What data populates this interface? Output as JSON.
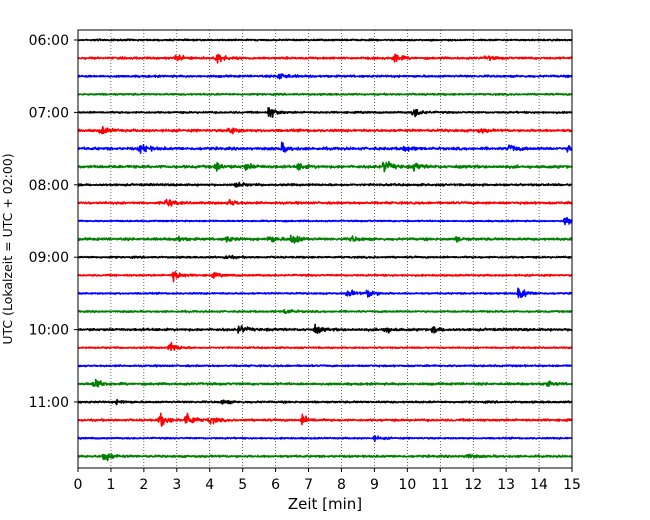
{
  "chart_data": {
    "type": "line",
    "subtype": "seismogram-helicorder",
    "title": "",
    "xlabel": "Zeit  [min]",
    "ylabel": "UTC (Lokalzeit = UTC + 02:00)",
    "xlim": [
      0,
      15
    ],
    "x_ticks": [
      0,
      1,
      2,
      3,
      4,
      5,
      6,
      7,
      8,
      9,
      10,
      11,
      12,
      13,
      14,
      15
    ],
    "x_tick_labels": [
      "0",
      "1",
      "2",
      "3",
      "4",
      "5",
      "6",
      "7",
      "8",
      "9",
      "10",
      "11",
      "12",
      "13",
      "14",
      "15"
    ],
    "y_tick_labels": [
      "06:00",
      "07:00",
      "08:00",
      "09:00",
      "10:00",
      "11:00"
    ],
    "y_ticks_at_trace_index": [
      0,
      4,
      8,
      12,
      16,
      20
    ],
    "grid": "vertical dotted at every minute",
    "trace_color_cycle": [
      "#000000",
      "#ff0000",
      "#0000ff",
      "#008000"
    ],
    "traces_per_hour": 4,
    "minutes_per_trace": 15,
    "traces": [
      {
        "start": "06:00",
        "noise": 0.9,
        "events": [
          {
            "t": 0.6,
            "amp": 1.2
          }
        ]
      },
      {
        "start": "06:15",
        "noise": 1.2,
        "events": [
          {
            "t": 3.0,
            "amp": 5
          },
          {
            "t": 4.2,
            "amp": 9
          },
          {
            "t": 9.6,
            "amp": 7
          },
          {
            "t": 12.4,
            "amp": 3
          }
        ]
      },
      {
        "start": "06:30",
        "noise": 1.2,
        "events": [
          {
            "t": 6.1,
            "amp": 6
          }
        ]
      },
      {
        "start": "06:45",
        "noise": 1.0,
        "events": []
      },
      {
        "start": "07:00",
        "noise": 1.0,
        "events": [
          {
            "t": 5.8,
            "amp": 9
          },
          {
            "t": 10.2,
            "amp": 7
          }
        ]
      },
      {
        "start": "07:15",
        "noise": 1.4,
        "events": [
          {
            "t": 0.7,
            "amp": 6
          },
          {
            "t": 4.6,
            "amp": 6
          },
          {
            "t": 12.2,
            "amp": 3
          }
        ]
      },
      {
        "start": "07:30",
        "noise": 1.5,
        "events": [
          {
            "t": 1.9,
            "amp": 8
          },
          {
            "t": 6.2,
            "amp": 6
          },
          {
            "t": 9.9,
            "amp": 4
          },
          {
            "t": 13.1,
            "amp": 6
          },
          {
            "t": 14.9,
            "amp": 5
          }
        ]
      },
      {
        "start": "07:45",
        "noise": 1.6,
        "events": [
          {
            "t": 4.2,
            "amp": 6
          },
          {
            "t": 5.1,
            "amp": 5
          },
          {
            "t": 6.7,
            "amp": 5
          },
          {
            "t": 9.3,
            "amp": 9
          },
          {
            "t": 10.2,
            "amp": 5
          }
        ]
      },
      {
        "start": "08:00",
        "noise": 1.2,
        "events": [
          {
            "t": 4.8,
            "amp": 4
          }
        ]
      },
      {
        "start": "08:15",
        "noise": 1.3,
        "events": [
          {
            "t": 2.7,
            "amp": 6
          },
          {
            "t": 4.6,
            "amp": 5
          }
        ]
      },
      {
        "start": "08:30",
        "noise": 0.8,
        "events": [
          {
            "t": 14.8,
            "amp": 7
          }
        ]
      },
      {
        "start": "08:45",
        "noise": 1.4,
        "events": [
          {
            "t": 3.0,
            "amp": 4
          },
          {
            "t": 4.5,
            "amp": 4
          },
          {
            "t": 5.8,
            "amp": 6
          },
          {
            "t": 6.5,
            "amp": 10
          },
          {
            "t": 8.3,
            "amp": 4
          },
          {
            "t": 11.5,
            "amp": 3
          }
        ]
      },
      {
        "start": "09:00",
        "noise": 1.0,
        "events": [
          {
            "t": 4.5,
            "amp": 3
          }
        ]
      },
      {
        "start": "09:15",
        "noise": 1.0,
        "events": [
          {
            "t": 2.9,
            "amp": 8
          },
          {
            "t": 4.1,
            "amp": 3
          }
        ]
      },
      {
        "start": "09:30",
        "noise": 0.9,
        "events": [
          {
            "t": 8.2,
            "amp": 6
          },
          {
            "t": 8.8,
            "amp": 7
          },
          {
            "t": 13.4,
            "amp": 10
          }
        ]
      },
      {
        "start": "09:45",
        "noise": 1.0,
        "events": [
          {
            "t": 6.3,
            "amp": 4
          }
        ]
      },
      {
        "start": "10:00",
        "noise": 1.4,
        "events": [
          {
            "t": 4.9,
            "amp": 6
          },
          {
            "t": 7.2,
            "amp": 5
          },
          {
            "t": 9.3,
            "amp": 5
          },
          {
            "t": 10.8,
            "amp": 4
          }
        ]
      },
      {
        "start": "10:15",
        "noise": 0.9,
        "events": [
          {
            "t": 2.8,
            "amp": 8
          }
        ]
      },
      {
        "start": "10:30",
        "noise": 1.0,
        "events": []
      },
      {
        "start": "10:45",
        "noise": 1.3,
        "events": [
          {
            "t": 0.5,
            "amp": 9
          },
          {
            "t": 14.2,
            "amp": 4
          }
        ]
      },
      {
        "start": "11:00",
        "noise": 1.1,
        "events": [
          {
            "t": 1.2,
            "amp": 3
          },
          {
            "t": 4.4,
            "amp": 3
          }
        ]
      },
      {
        "start": "11:15",
        "noise": 1.2,
        "events": [
          {
            "t": 2.5,
            "amp": 9
          },
          {
            "t": 3.3,
            "amp": 12
          },
          {
            "t": 4.0,
            "amp": 5
          },
          {
            "t": 6.8,
            "amp": 7
          }
        ]
      },
      {
        "start": "11:30",
        "noise": 0.9,
        "events": [
          {
            "t": 9.0,
            "amp": 3
          }
        ]
      },
      {
        "start": "11:45",
        "noise": 1.2,
        "events": [
          {
            "t": 0.8,
            "amp": 9
          },
          {
            "t": 11.8,
            "amp": 4
          }
        ]
      }
    ]
  }
}
